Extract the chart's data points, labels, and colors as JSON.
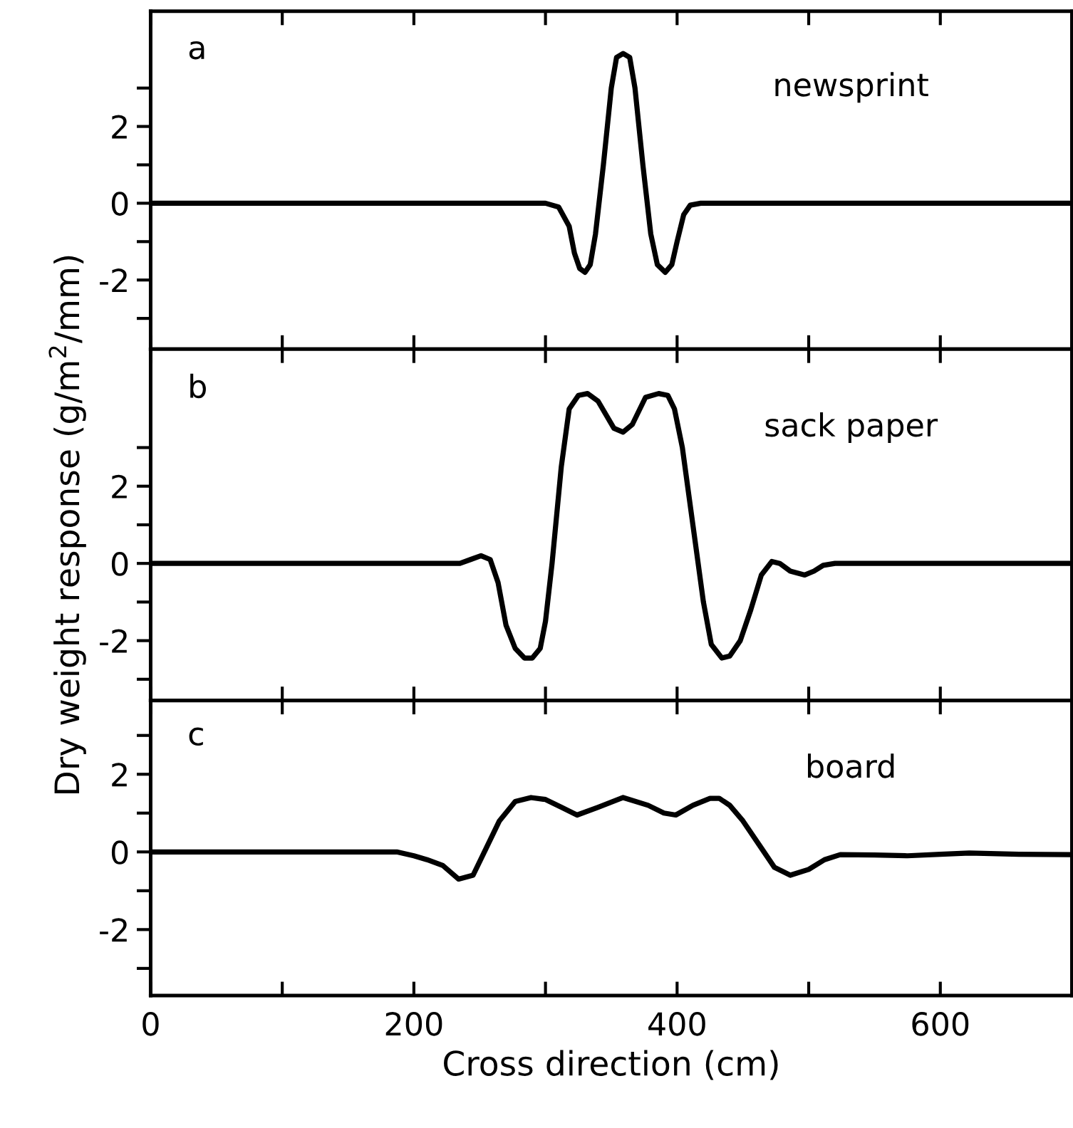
{
  "chart_data": [
    {
      "type": "line",
      "annotations": [
        "a",
        "newsprint"
      ],
      "tick_labels": "y",
      "xlim": [
        0,
        700
      ],
      "xticks": [
        {
          "value": 0,
          "label": null
        },
        {
          "value": 100,
          "label": null
        },
        {
          "value": 200,
          "label": null
        },
        {
          "value": 300,
          "label": null
        },
        {
          "value": 400,
          "label": null
        },
        {
          "value": 500,
          "label": null
        },
        {
          "value": 600,
          "label": null
        },
        {
          "value": 700,
          "label": null
        }
      ],
      "ylim": [
        -3.8,
        5.0
      ],
      "yticks": [
        {
          "value": -3,
          "label": null
        },
        -2,
        {
          "value": -1,
          "label": null
        },
        0,
        {
          "value": 1,
          "label": null
        },
        2,
        {
          "value": 3,
          "label": null
        }
      ],
      "grid": false,
      "legend": false,
      "marker": "none",
      "line_style": "solid",
      "series": [
        {
          "color": "#000000",
          "x": [
            0,
            300,
            310,
            318,
            322,
            326,
            330,
            334,
            338,
            344,
            350,
            354,
            359,
            364,
            368,
            374,
            380,
            385,
            391,
            396,
            400,
            405,
            410,
            418,
            700
          ],
          "values": [
            0,
            0,
            -0.1,
            -0.6,
            -1.3,
            -1.7,
            -1.8,
            -1.6,
            -0.8,
            1.0,
            3.0,
            3.8,
            3.9,
            3.8,
            3.0,
            1.0,
            -0.8,
            -1.6,
            -1.8,
            -1.6,
            -1.0,
            -0.3,
            -0.05,
            0,
            0
          ]
        }
      ]
    },
    {
      "type": "line",
      "annotations": [
        "b",
        "sack paper"
      ],
      "ylabel": "Dry weight response (g/m$^{2}$/mm)",
      "tick_labels": "y",
      "xlim": [
        0,
        700
      ],
      "xticks": [
        {
          "value": 0,
          "label": null
        },
        {
          "value": 100,
          "label": null
        },
        {
          "value": 200,
          "label": null
        },
        {
          "value": 300,
          "label": null
        },
        {
          "value": 400,
          "label": null
        },
        {
          "value": 500,
          "label": null
        },
        {
          "value": 600,
          "label": null
        },
        {
          "value": 700,
          "label": null
        }
      ],
      "ylim": [
        -3.55,
        5.55
      ],
      "yticks": [
        {
          "value": -3,
          "label": null
        },
        -2,
        {
          "value": -1,
          "label": null
        },
        0,
        {
          "value": 1,
          "label": null
        },
        2,
        {
          "value": 3,
          "label": null
        }
      ],
      "grid": false,
      "legend": false,
      "marker": "none",
      "line_style": "solid",
      "series": [
        {
          "color": "#000000",
          "x": [
            0,
            235,
            243,
            251,
            258,
            264,
            270,
            277,
            284,
            290,
            296,
            300,
            305,
            312,
            318,
            325,
            332,
            340,
            352,
            359,
            366,
            376,
            386,
            393,
            398,
            404,
            412,
            420,
            426,
            434,
            440,
            448,
            456,
            464,
            472,
            478,
            486,
            497,
            504,
            511,
            520,
            700
          ],
          "values": [
            0,
            0,
            0.1,
            0.2,
            0.1,
            -0.5,
            -1.6,
            -2.2,
            -2.45,
            -2.45,
            -2.2,
            -1.5,
            0,
            2.5,
            4.0,
            4.35,
            4.4,
            4.2,
            3.5,
            3.4,
            3.6,
            4.3,
            4.4,
            4.35,
            4.0,
            3.0,
            1.0,
            -1.0,
            -2.1,
            -2.45,
            -2.4,
            -2.0,
            -1.2,
            -0.3,
            0.05,
            0.0,
            -0.2,
            -0.3,
            -0.2,
            -0.05,
            0,
            0
          ]
        }
      ]
    },
    {
      "type": "line",
      "annotations": [
        "c",
        "board"
      ],
      "xlabel": "Cross direction (cm)",
      "xlim": [
        0,
        700
      ],
      "xticks": [
        0,
        {
          "value": 100,
          "label": null
        },
        200,
        {
          "value": 300,
          "label": null
        },
        400,
        {
          "value": 500,
          "label": null
        },
        600,
        {
          "value": 700,
          "label": null
        }
      ],
      "ylim": [
        -3.7,
        3.9
      ],
      "yticks": [
        {
          "value": -3,
          "label": null
        },
        -2,
        {
          "value": -1,
          "label": null
        },
        0,
        {
          "value": 1,
          "label": null
        },
        2,
        {
          "value": 3,
          "label": null
        }
      ],
      "grid": false,
      "legend": false,
      "marker": "none",
      "line_style": "solid",
      "series": [
        {
          "color": "#000000",
          "x": [
            0,
            187,
            200,
            210,
            222,
            234,
            245,
            255,
            265,
            277,
            289,
            300,
            312,
            324,
            340,
            359,
            378,
            390,
            399,
            412,
            425,
            432,
            440,
            450,
            462,
            474,
            486,
            500,
            512,
            524,
            550,
            575,
            600,
            622,
            660,
            700
          ],
          "values": [
            0,
            0,
            -0.1,
            -0.2,
            -0.35,
            -0.7,
            -0.6,
            0.1,
            0.8,
            1.3,
            1.4,
            1.35,
            1.15,
            0.95,
            1.15,
            1.4,
            1.2,
            1.0,
            0.95,
            1.2,
            1.38,
            1.38,
            1.2,
            0.8,
            0.2,
            -0.4,
            -0.6,
            -0.45,
            -0.2,
            -0.07,
            -0.08,
            -0.1,
            -0.06,
            -0.03,
            -0.06,
            -0.07
          ]
        }
      ]
    }
  ]
}
